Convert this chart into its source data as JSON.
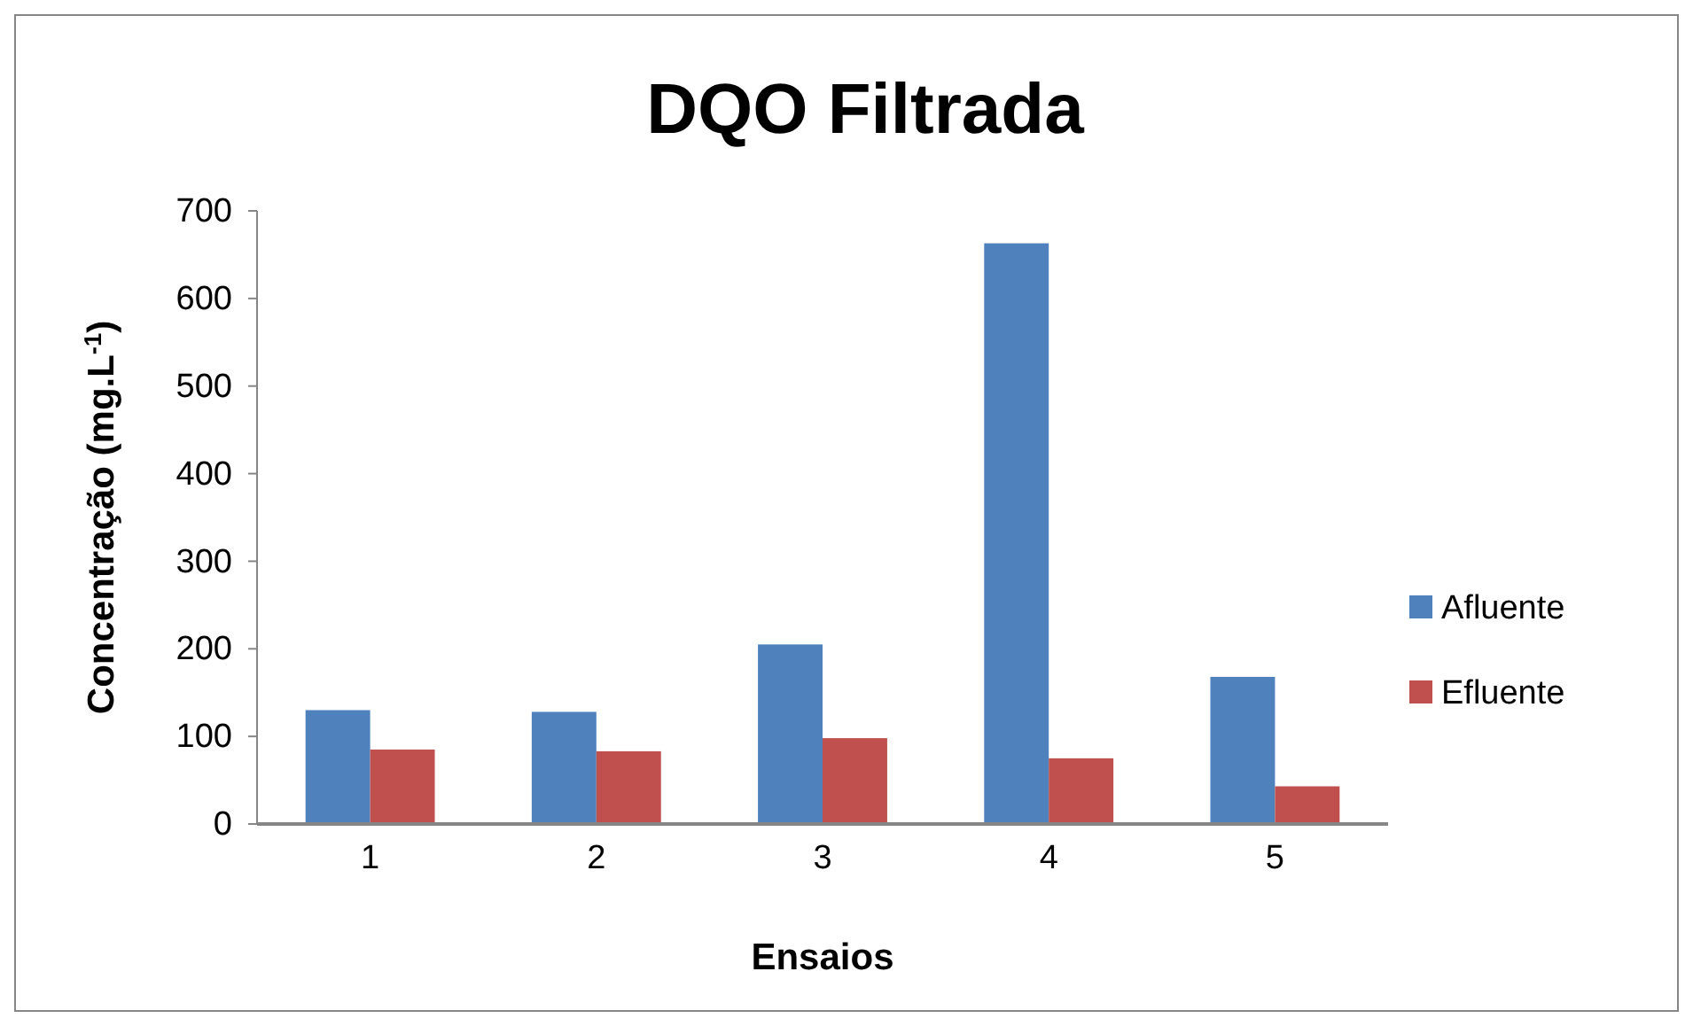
{
  "chart_data": {
    "type": "bar",
    "title": "DQO Filtrada",
    "xlabel": "Ensaios",
    "ylabel": "Concentração (mg.L$^{-1}$)",
    "categories": [
      "1",
      "2",
      "3",
      "4",
      "5"
    ],
    "series": [
      {
        "name": "Afluente",
        "color": "#4f81bd",
        "values": [
          130,
          128,
          205,
          663,
          168
        ]
      },
      {
        "name": "Efluente",
        "color": "#c0504d",
        "values": [
          85,
          83,
          98,
          75,
          43
        ]
      }
    ],
    "ylim": [
      0,
      700
    ],
    "yticks": [
      0,
      100,
      200,
      300,
      400,
      500,
      600,
      700
    ],
    "grid": false,
    "legend": "right"
  }
}
